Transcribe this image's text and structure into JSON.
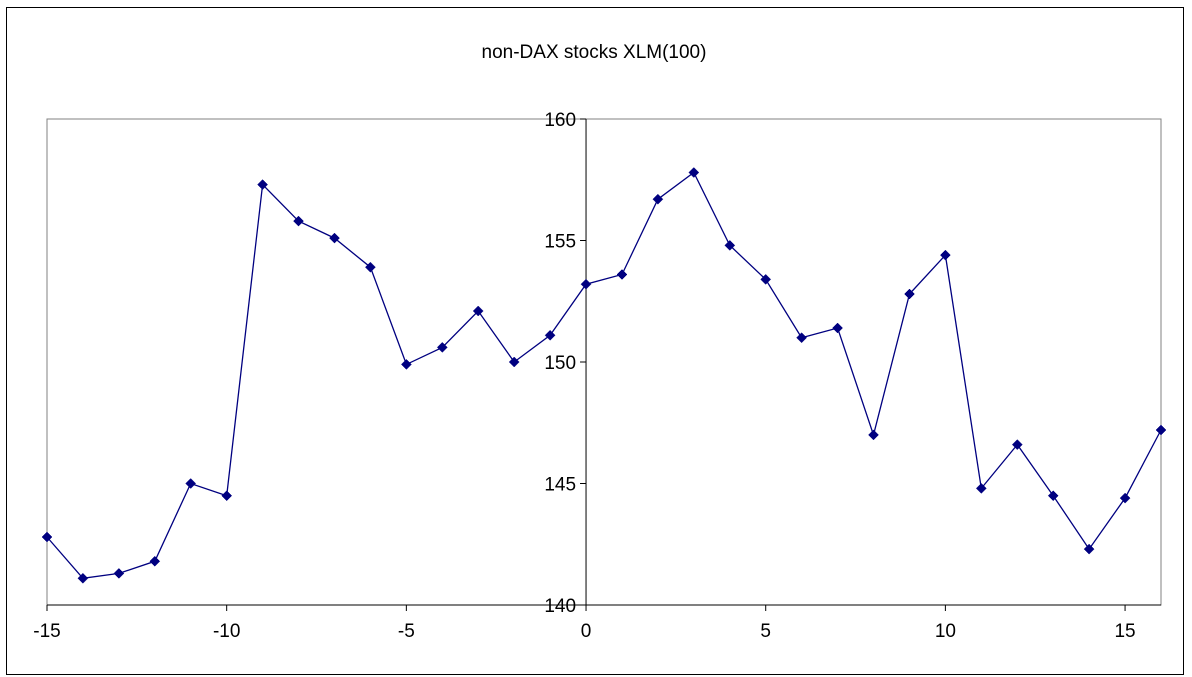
{
  "chart_data": {
    "type": "line",
    "title": "non-DAX stocks XLM(100)",
    "xlabel": "",
    "ylabel": "",
    "xlim": [
      -15,
      16
    ],
    "ylim": [
      140,
      160
    ],
    "x_ticks": [
      -15,
      -10,
      -5,
      0,
      5,
      10,
      15
    ],
    "y_ticks": [
      140,
      145,
      150,
      155,
      160
    ],
    "grid": false,
    "legend": "none",
    "marker": "diamond",
    "color": "#000080",
    "series": [
      {
        "x": [
          -15,
          -14,
          -13,
          -12,
          -11,
          -10,
          -9,
          -8,
          -7,
          -6,
          -5,
          -4,
          -3,
          -2,
          -1,
          0,
          1,
          2,
          3,
          4,
          5,
          6,
          7,
          8,
          9,
          10,
          11,
          12,
          13,
          14,
          15,
          16
        ],
        "values": [
          142.8,
          141.1,
          141.3,
          141.8,
          145.0,
          144.5,
          157.3,
          155.8,
          155.1,
          153.9,
          149.9,
          150.6,
          152.1,
          150.0,
          151.1,
          153.2,
          153.6,
          156.7,
          157.8,
          154.8,
          153.4,
          151.0,
          151.4,
          147.0,
          152.8,
          154.4,
          144.8,
          146.6,
          144.5,
          142.3,
          144.4,
          147.2
        ]
      }
    ]
  }
}
